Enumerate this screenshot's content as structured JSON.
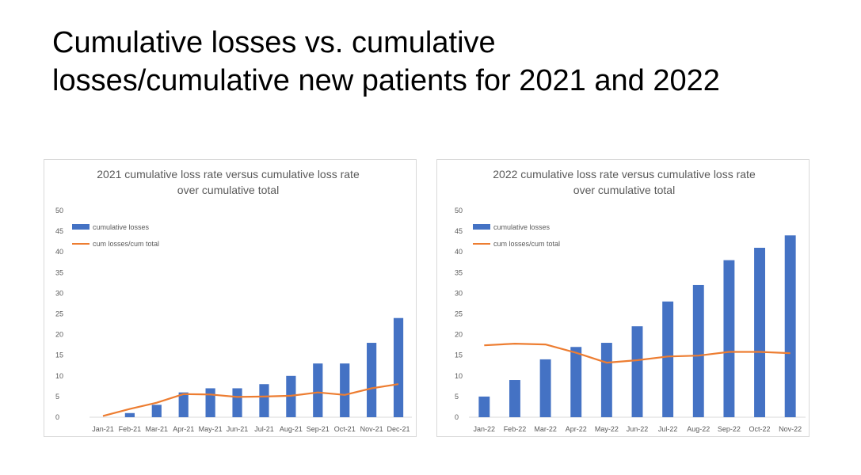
{
  "page": {
    "title_line1": "Cumulative losses vs. cumulative",
    "title_line2": "losses/cumulative new patients for 2021 and 2022"
  },
  "colors": {
    "bar": "#4472c4",
    "line": "#ed7d31",
    "axis": "#d9d9d9",
    "text": "#595959"
  },
  "chart_data": [
    {
      "type": "bar",
      "title_line1": "2021 cumulative loss rate versus cumulative loss rate",
      "title_line2": "over cumulative total",
      "categories": [
        "Jan-21",
        "Feb-21",
        "Mar-21",
        "Apr-21",
        "May-21",
        "Jun-21",
        "Jul-21",
        "Aug-21",
        "Sep-21",
        "Oct-21",
        "Nov-21",
        "Dec-21"
      ],
      "ylim": [
        0,
        50
      ],
      "yticks": [
        0,
        5,
        10,
        15,
        20,
        25,
        30,
        35,
        40,
        45,
        50
      ],
      "grid": false,
      "legend_position": "top-left",
      "series": [
        {
          "name": "cumulative losses",
          "kind": "bar",
          "values": [
            0,
            1,
            3,
            6,
            7,
            7,
            8,
            10,
            13,
            13,
            18,
            24
          ]
        },
        {
          "name": "cum losses/cum total",
          "kind": "line",
          "values": [
            0.3,
            2,
            3.5,
            5.6,
            5.5,
            4.9,
            5,
            5.2,
            6,
            5.4,
            7,
            8
          ]
        }
      ]
    },
    {
      "type": "bar",
      "title_line1": "2022 cumulative loss rate versus cumulative loss rate",
      "title_line2": "over cumulative total",
      "categories": [
        "Jan-22",
        "Feb-22",
        "Mar-22",
        "Apr-22",
        "May-22",
        "Jun-22",
        "Jul-22",
        "Aug-22",
        "Sep-22",
        "Oct-22",
        "Nov-22"
      ],
      "ylim": [
        0,
        50
      ],
      "yticks": [
        0,
        5,
        10,
        15,
        20,
        25,
        30,
        35,
        40,
        45,
        50
      ],
      "grid": false,
      "legend_position": "top-left",
      "series": [
        {
          "name": "cumulative losses",
          "kind": "bar",
          "values": [
            5,
            9,
            14,
            17,
            18,
            22,
            28,
            32,
            38,
            41,
            44
          ]
        },
        {
          "name": "cum losses/cum total",
          "kind": "line",
          "values": [
            17.4,
            17.8,
            17.6,
            15.6,
            13.2,
            13.8,
            14.7,
            14.9,
            15.8,
            15.8,
            15.5
          ]
        }
      ]
    }
  ]
}
